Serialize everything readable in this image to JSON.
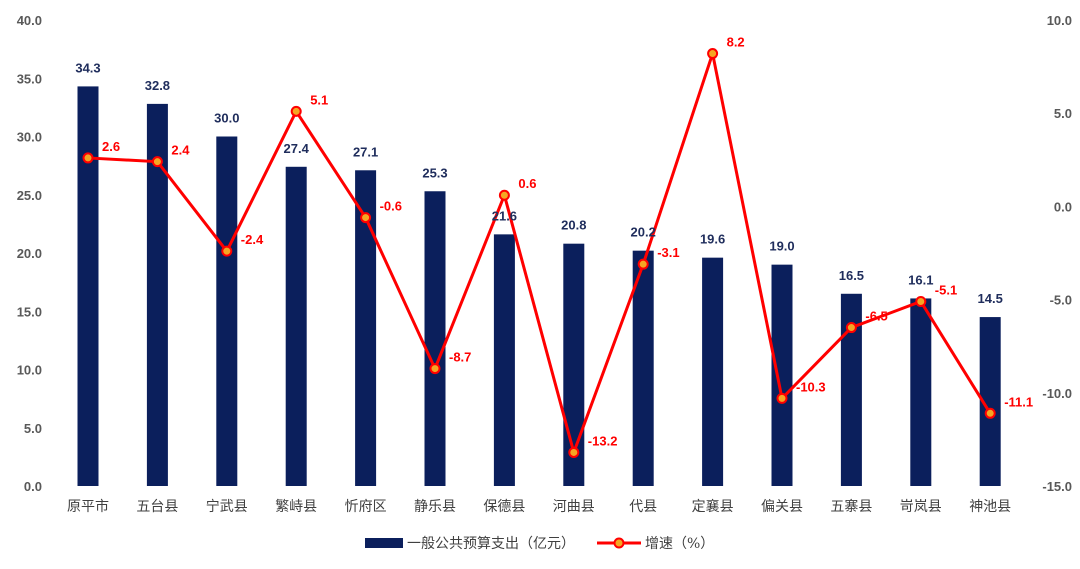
{
  "chart_data": {
    "type": "bar+line",
    "categories": [
      "原平市",
      "五台县",
      "宁武县",
      "繁峙县",
      "忻府区",
      "静乐县",
      "保德县",
      "河曲县",
      "代县",
      "定襄县",
      "偏关县",
      "五寨县",
      "岢岚县",
      "神池县"
    ],
    "series": [
      {
        "name": "一般公共预算支出（亿元）",
        "type": "bar",
        "axis": "left",
        "color": "#0b1f5c",
        "values": [
          34.3,
          32.8,
          30.0,
          27.4,
          27.1,
          25.3,
          21.6,
          20.8,
          20.2,
          19.6,
          19.0,
          16.5,
          16.1,
          14.5
        ],
        "labels": [
          "34.3",
          "32.8",
          "30.0",
          "27.4",
          "27.1",
          "25.3",
          "21.6",
          "20.8",
          "20.2",
          "19.6",
          "19.0",
          "16.5",
          "16.1",
          "14.5"
        ]
      },
      {
        "name": "增速（%）",
        "type": "line",
        "axis": "right",
        "color": "#ff0000",
        "marker_color": "#f5a623",
        "values": [
          2.6,
          2.4,
          -2.4,
          5.1,
          -0.6,
          -8.7,
          0.6,
          -13.2,
          -3.1,
          8.2,
          -10.3,
          -6.5,
          -5.1,
          -11.1
        ],
        "labels": [
          "2.6",
          "2.4",
          "-2.4",
          "5.1",
          "-0.6",
          "-8.7",
          "0.6",
          "-13.2",
          "-3.1",
          "8.2",
          "-10.3",
          "-6.5",
          "-5.1",
          "-11.1"
        ]
      }
    ],
    "y_left": {
      "range": [
        0,
        40
      ],
      "ticks": [
        0,
        5,
        10,
        15,
        20,
        25,
        30,
        35,
        40
      ],
      "tick_labels": [
        "0.0",
        "5.0",
        "10.0",
        "15.0",
        "20.0",
        "25.0",
        "30.0",
        "35.0",
        "40.0"
      ]
    },
    "y_right": {
      "range": [
        -15,
        10
      ],
      "ticks": [
        -15,
        -10,
        -5,
        0,
        5,
        10
      ],
      "tick_labels": [
        "-15.0",
        "-10.0",
        "-5.0",
        "0.0",
        "5.0",
        "10.0"
      ]
    },
    "grid": false,
    "legend_position": "bottom"
  }
}
